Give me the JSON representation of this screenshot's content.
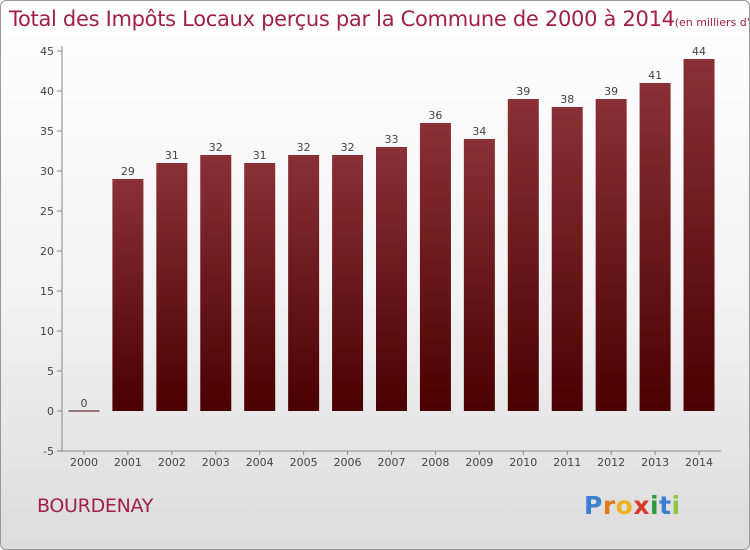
{
  "title": "Total des Impôts Locaux perçus par la Commune de 2000 à 2014",
  "title_unit": "(en milliers d'€)",
  "commune": "BOURDENAY",
  "logo": {
    "letters": [
      "P",
      "r",
      "o",
      "x",
      "i",
      "t",
      "i"
    ],
    "colors": [
      "#3a7fd0",
      "#e07a1a",
      "#f0b020",
      "#d63a2a",
      "#2a9a3a",
      "#3a7fd0",
      "#8dc63f"
    ]
  },
  "colors": {
    "bar_top": "#8a3036",
    "bar_bottom": "#4a0000",
    "title": "#a0204a"
  },
  "chart_data": {
    "type": "bar",
    "categories": [
      "2000",
      "2001",
      "2002",
      "2003",
      "2004",
      "2005",
      "2006",
      "2007",
      "2008",
      "2009",
      "2010",
      "2011",
      "2012",
      "2013",
      "2014"
    ],
    "values": [
      0,
      29,
      31,
      32,
      31,
      32,
      32,
      33,
      36,
      34,
      39,
      38,
      39,
      41,
      44
    ],
    "data_labels": [
      "0",
      "29",
      "31",
      "32",
      "31",
      "32",
      "32",
      "33",
      "36",
      "34",
      "39",
      "38",
      "39",
      "41",
      "44"
    ],
    "yticks": [
      -5,
      0,
      5,
      10,
      15,
      20,
      25,
      30,
      35,
      40,
      45
    ],
    "ytick_labels": [
      "-5",
      "0",
      "5",
      "10",
      "15",
      "20",
      "25",
      "30",
      "35",
      "40",
      "45"
    ],
    "ylim": [
      -5,
      45
    ],
    "grid": false,
    "legend": "none"
  }
}
